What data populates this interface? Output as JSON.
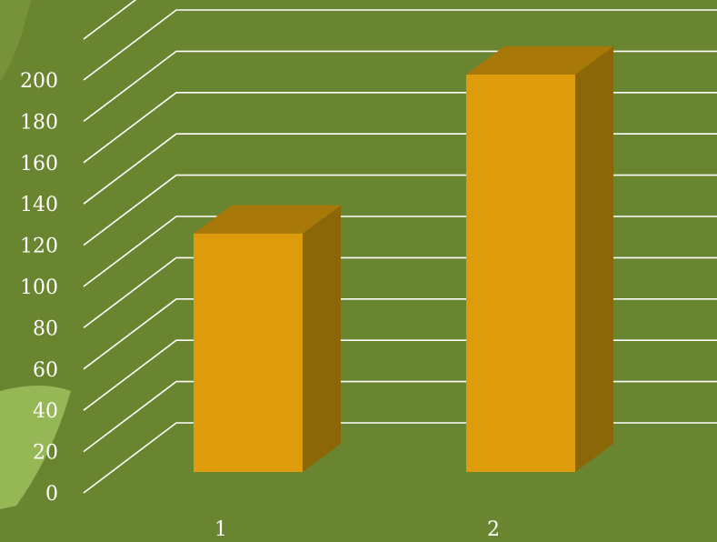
{
  "chart_data": {
    "type": "bar",
    "categories": [
      "1",
      "2"
    ],
    "values": [
      117,
      195
    ],
    "title": "",
    "xlabel": "",
    "ylabel": "",
    "ylim": [
      0,
      200
    ],
    "yticks": [
      0,
      20,
      40,
      60,
      80,
      100,
      120,
      140,
      160,
      180,
      200
    ],
    "grid": true,
    "legend": "none",
    "colors": {
      "background": "#6a8530",
      "grid": "#ffffff",
      "bar_front": "#de9b0c",
      "bar_top": "#a87808",
      "bar_side": "#8c6708",
      "decoration": "#9bbd5a"
    }
  }
}
